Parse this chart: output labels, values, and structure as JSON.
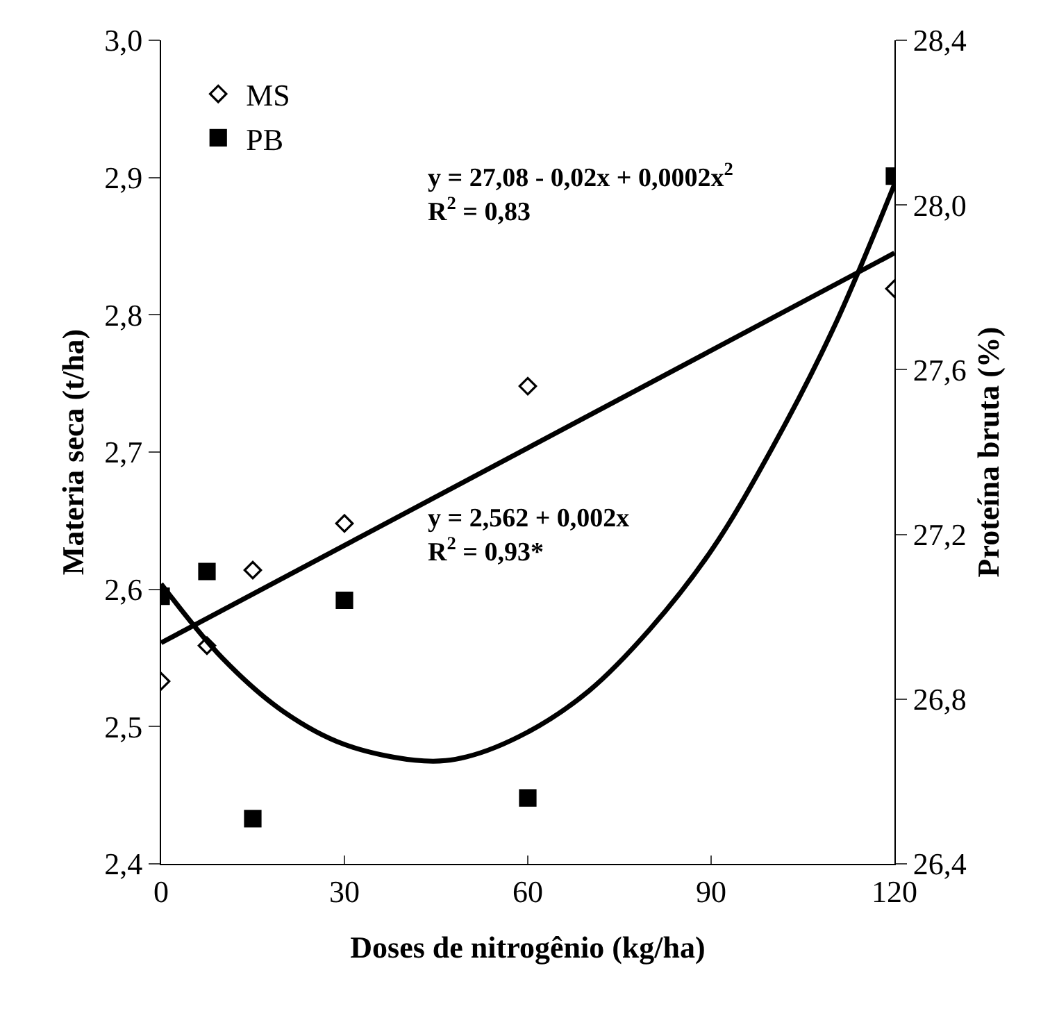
{
  "chart_data": {
    "type": "scatter",
    "xlabel": "Doses de nitrogênio (kg/ha)",
    "ylabel": "Materia seca (t/ha)",
    "y2label": "Proteína bruta (%)",
    "xlim": [
      0,
      120
    ],
    "xticks": [
      0,
      30,
      60,
      90,
      120
    ],
    "ylim": [
      2.4,
      3.0
    ],
    "yticks": [
      {
        "value": 2.4,
        "label": "2,4"
      },
      {
        "value": 2.5,
        "label": "2,5"
      },
      {
        "value": 2.6,
        "label": "2,6"
      },
      {
        "value": 2.7,
        "label": "2,7"
      },
      {
        "value": 2.8,
        "label": "2,8"
      },
      {
        "value": 2.9,
        "label": "2,9"
      },
      {
        "value": 3.0,
        "label": "3,0"
      }
    ],
    "y2lim": [
      26.4,
      28.4
    ],
    "y2ticks": [
      {
        "value": 26.4,
        "label": "26,4"
      },
      {
        "value": 26.8,
        "label": "26,8"
      },
      {
        "value": 27.2,
        "label": "27,2"
      },
      {
        "value": 27.6,
        "label": "27,6"
      },
      {
        "value": 28.0,
        "label": "28,0"
      },
      {
        "value": 28.4,
        "label": "28,4"
      }
    ],
    "x": [
      0,
      7.5,
      15,
      30,
      60,
      120
    ],
    "series": [
      {
        "name": "MS",
        "color": "#000000",
        "marker": "diamond",
        "values": [
          2.533,
          2.559,
          2.614,
          2.648,
          2.748,
          2.819
        ]
      },
      {
        "name": "PB",
        "color": "#000000",
        "marker": "square",
        "axis": "y2",
        "values": [
          27.05,
          27.11,
          26.51,
          27.04,
          26.56,
          28.07
        ]
      },
      {
        "color": "#000000",
        "type": "line",
        "marker": "none",
        "x": [
          0,
          120
        ],
        "values": [
          2.561,
          2.845
        ]
      },
      {
        "color": "#000000",
        "type": "line",
        "marker": "none",
        "axis": "y2",
        "x": [
          0,
          10,
          20,
          30,
          43,
          50,
          60,
          70,
          80,
          90,
          100,
          110,
          120
        ],
        "values": [
          27.08,
          26.9,
          26.77,
          26.69,
          26.65,
          26.66,
          26.72,
          26.82,
          26.97,
          27.16,
          27.41,
          27.7,
          28.05
        ]
      }
    ],
    "annotations": [
      "y = 27,08 - 0,02x + 0,0002x$^{2}$\nR$^{2}$ = 0,83",
      "y = 2,562 + 0,002x\nR$^{2}$ = 0,93*"
    ],
    "legend": "top left"
  }
}
